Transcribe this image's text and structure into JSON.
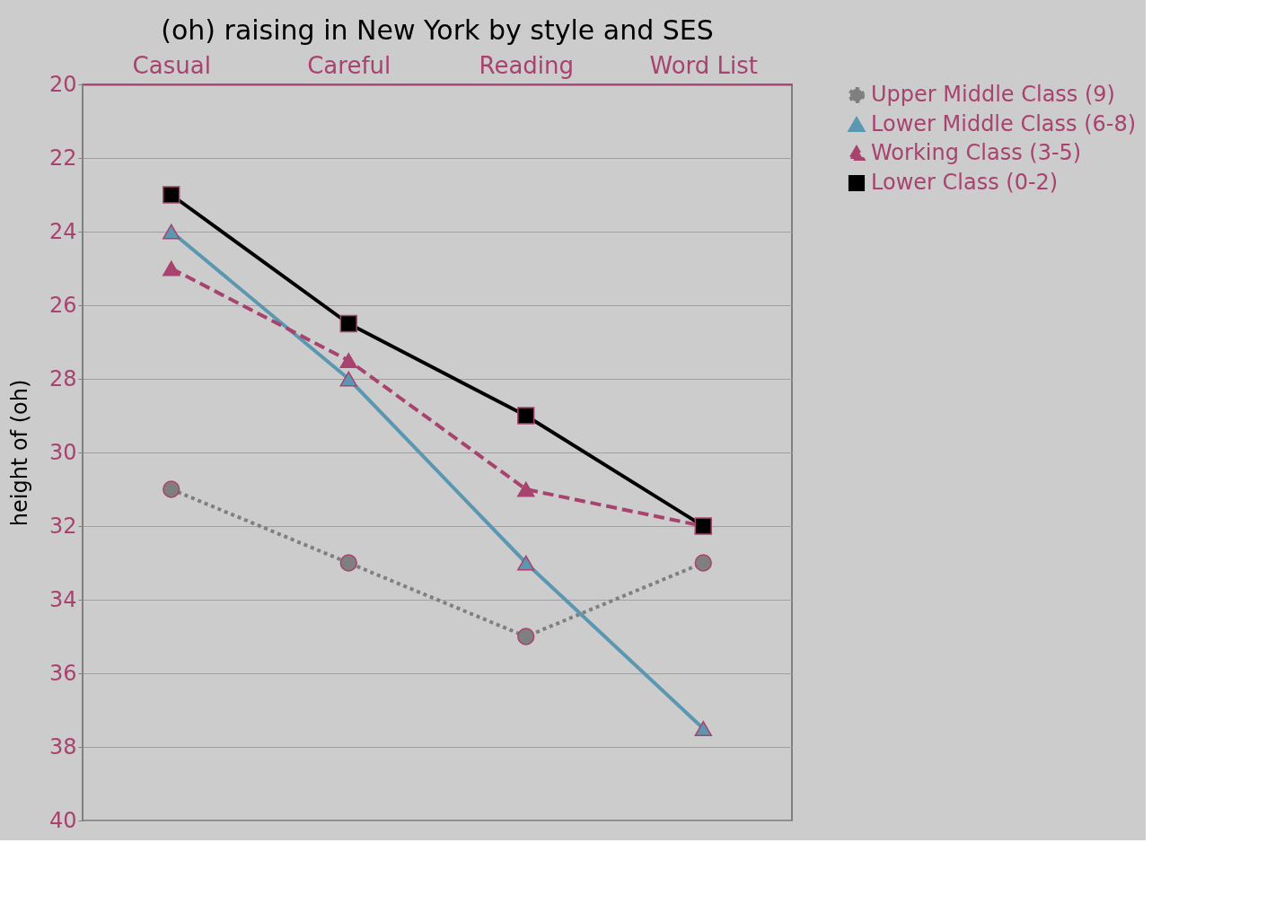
{
  "chart_data": {
    "type": "line",
    "title": "(oh) raising in New York by style and SES",
    "ylabel": "height of (oh)",
    "categories": [
      "Casual",
      "Careful",
      "Reading",
      "Word List"
    ],
    "series": [
      {
        "name": "Upper Middle Class (9)",
        "color": "#7f7f7f",
        "values": [
          31,
          33,
          35,
          33
        ],
        "marker": "circle",
        "line_style": "dotted"
      },
      {
        "name": "Lower Middle Class (6-8)",
        "color": "#5b97b1",
        "values": [
          24,
          28,
          33,
          37.5
        ],
        "marker": "triangle",
        "line_style": "solid"
      },
      {
        "name": "Working Class (3-5)",
        "color": "#a8426e",
        "values": [
          25,
          27.5,
          31,
          32
        ],
        "marker": "triangle",
        "line_style": "dashed"
      },
      {
        "name": "Lower Class (0-2)",
        "color": "#000000",
        "values": [
          23,
          26.5,
          29,
          32
        ],
        "marker": "square",
        "line_style": "solid"
      }
    ],
    "ylim": [
      40,
      20
    ],
    "yticks": [
      20,
      22,
      24,
      26,
      28,
      30,
      32,
      34,
      36,
      38,
      40
    ],
    "grid": "y",
    "legend": "right"
  }
}
